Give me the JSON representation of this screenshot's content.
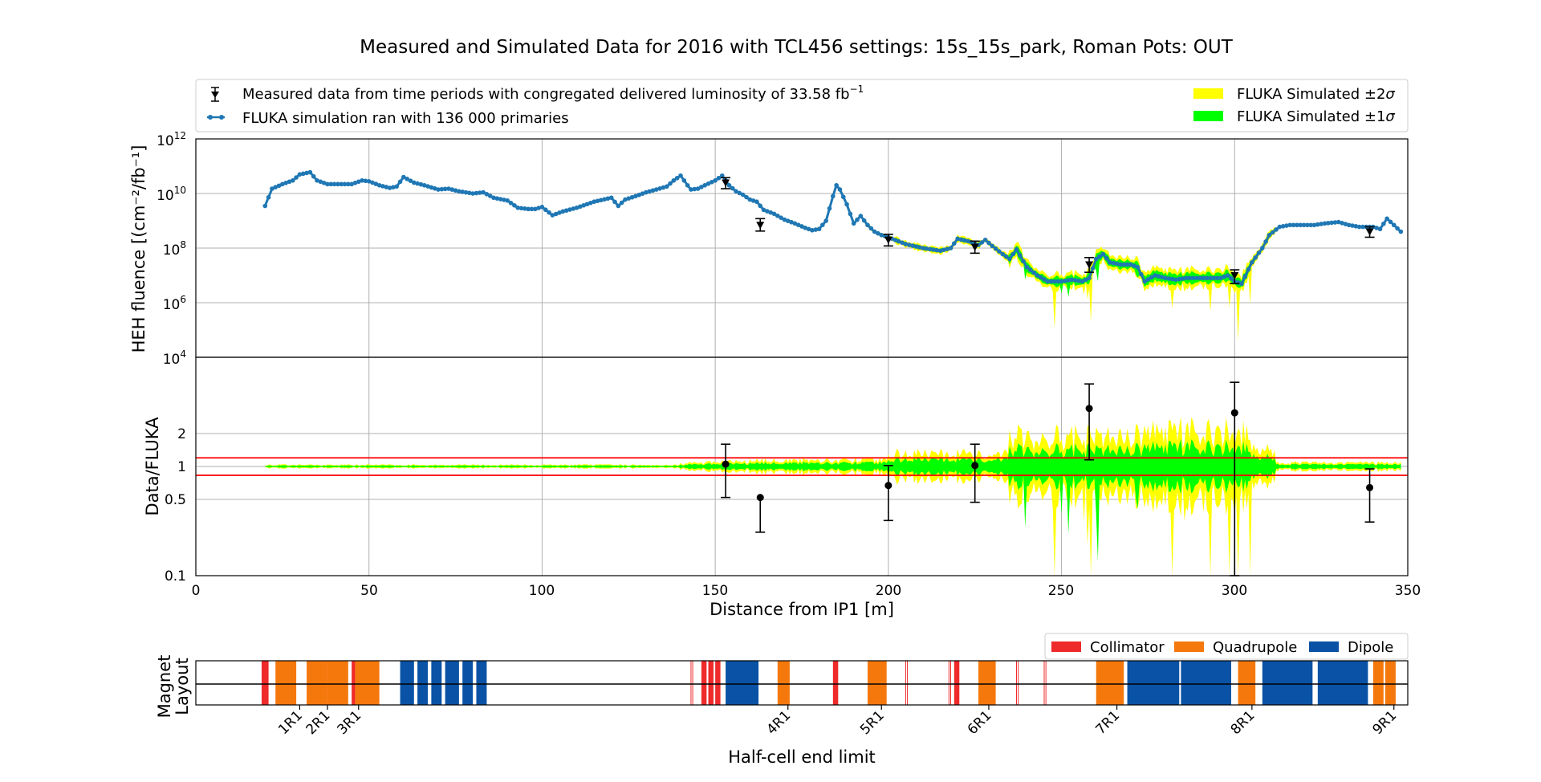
{
  "chart_data": {
    "type": "line",
    "title": "Measured and Simulated Data for 2016 with TCL456 settings: 15s_15s_park, Roman Pots: OUT",
    "colors": {
      "fluka": "#1f77b4",
      "sigma2": "#ffff00",
      "sigma1": "#00ff00",
      "ratio_lines": "#ff0000",
      "collimator": "#ee2a2a",
      "quadrupole": "#f5780d",
      "dipole": "#0a52a5"
    },
    "top_panel": {
      "ylabel": "HEH fluence [(cm⁻²/fb⁻¹]",
      "yscale": "log",
      "ylim": [
        10000,
        1000000000000
      ],
      "ytick_bases": [
        "10",
        "10",
        "10",
        "10",
        "10"
      ],
      "ytick_exps": [
        "12",
        "10",
        "8",
        "6",
        "4"
      ],
      "legend": {
        "measured": "Measured data from time periods with congregated delivered luminosity of 33.58 fb",
        "measured_sup": "−1",
        "fluka": "FLUKA simulation ran with 136 000 primaries",
        "sigma2_prefix": "FLUKA Simulated ±2",
        "sigma1_prefix": "FLUKA Simulated ±1",
        "sigma_symbol": "σ"
      },
      "fluka_series": {
        "x": [
          20,
          22,
          25,
          28,
          30,
          33,
          35,
          38,
          42,
          45,
          48,
          50,
          53,
          56,
          58,
          60,
          63,
          66,
          70,
          73,
          76,
          80,
          83,
          86,
          90,
          93,
          96,
          98,
          100,
          103,
          106,
          110,
          115,
          120,
          122,
          124,
          127,
          130,
          133,
          136,
          138,
          140,
          142,
          143,
          145,
          147,
          150,
          152,
          154,
          156,
          158,
          160,
          162,
          164,
          167,
          170,
          173,
          176,
          178,
          180,
          182,
          184,
          185,
          186,
          188,
          190,
          192,
          194,
          196,
          198,
          200,
          205,
          210,
          215,
          218,
          220,
          223,
          226,
          228,
          230,
          233,
          235,
          237,
          240,
          243,
          246,
          250,
          253,
          256,
          258,
          260,
          262,
          264,
          267,
          270,
          272,
          274,
          277,
          280,
          283,
          286,
          290,
          293,
          296,
          298,
          300,
          302,
          305,
          308,
          310,
          313,
          316,
          320,
          323,
          326,
          330,
          333,
          336,
          340,
          342,
          344,
          346,
          348
        ],
        "y": [
          3500000000.0,
          15000000000.0,
          22000000000.0,
          30000000000.0,
          50000000000.0,
          60000000000.0,
          30000000000.0,
          22000000000.0,
          22000000000.0,
          22000000000.0,
          30000000000.0,
          28000000000.0,
          20000000000.0,
          16000000000.0,
          18000000000.0,
          40000000000.0,
          25000000000.0,
          20000000000.0,
          14000000000.0,
          15000000000.0,
          12000000000.0,
          10000000000.0,
          11000000000.0,
          7000000000.0,
          5500000000.0,
          3000000000.0,
          2700000000.0,
          2700000000.0,
          3200000000.0,
          1600000000.0,
          2200000000.0,
          3000000000.0,
          5000000000.0,
          7000000000.0,
          3500000000.0,
          6000000000.0,
          8000000000.0,
          11000000000.0,
          14000000000.0,
          18000000000.0,
          30000000000.0,
          45000000000.0,
          20000000000.0,
          14000000000.0,
          15000000000.0,
          20000000000.0,
          30000000000.0,
          45000000000.0,
          20000000000.0,
          12000000000.0,
          9000000000.0,
          6000000000.0,
          5000000000.0,
          2500000000.0,
          1800000000.0,
          1100000000.0,
          800000000.0,
          550000000.0,
          450000000.0,
          500000000.0,
          1000000000.0,
          8000000000.0,
          20000000000.0,
          14000000000.0,
          4000000000.0,
          800000000.0,
          1500000000.0,
          700000000.0,
          400000000.0,
          300000000.0,
          250000000.0,
          140000000.0,
          100000000.0,
          80000000.0,
          100000000.0,
          220000000.0,
          180000000.0,
          130000000.0,
          200000000.0,
          120000000.0,
          60000000.0,
          40000000.0,
          90000000.0,
          20000000.0,
          10000000.0,
          6000000.0,
          6000000.0,
          7000000.0,
          6000000.0,
          8000000.0,
          40000000.0,
          60000000.0,
          30000000.0,
          25000000.0,
          25000000.0,
          20000000.0,
          6000000.0,
          10000000.0,
          8000000.0,
          7000000.0,
          8000000.0,
          8000000.0,
          8000000.0,
          8000000.0,
          10000000.0,
          6000000.0,
          5000000.0,
          30000000.0,
          100000000.0,
          300000000.0,
          600000000.0,
          700000000.0,
          700000000.0,
          700000000.0,
          800000000.0,
          900000000.0,
          700000000.0,
          600000000.0,
          600000000.0,
          500000000.0,
          1200000000.0,
          700000000.0,
          400000000.0
        ]
      },
      "measured_points": [
        {
          "x": 153,
          "y": 25000000000.0,
          "lo": 15000000000.0,
          "hi": 38000000000.0
        },
        {
          "x": 163,
          "y": 700000000.0,
          "lo": 420000000.0,
          "hi": 1200000000.0
        },
        {
          "x": 200,
          "y": 200000000.0,
          "lo": 120000000.0,
          "hi": 320000000.0
        },
        {
          "x": 225,
          "y": 110000000.0,
          "lo": 65000000.0,
          "hi": 180000000.0
        },
        {
          "x": 258,
          "y": 25000000.0,
          "lo": 13000000.0,
          "hi": 45000000.0
        },
        {
          "x": 300,
          "y": 10000000.0,
          "lo": 5000000.0,
          "hi": 16000000.0
        },
        {
          "x": 339,
          "y": 400000000.0,
          "lo": 250000000.0,
          "hi": 600000000.0
        }
      ]
    },
    "bottom_panel": {
      "ylabel": "Data/FLUKA",
      "yscale": "log",
      "ylim": [
        0.1,
        10
      ],
      "yticks": [
        "2",
        "1",
        "0.5",
        "0.1"
      ],
      "hlines": [
        1.2,
        0.83
      ],
      "points": [
        {
          "x": 153,
          "y": 1.05,
          "lo": 0.52,
          "hi": 1.6
        },
        {
          "x": 163,
          "y": 0.52,
          "lo": 0.25,
          "hi": null
        },
        {
          "x": 200,
          "y": 0.67,
          "lo": 0.32,
          "hi": 1.02
        },
        {
          "x": 225,
          "y": 1.02,
          "lo": 0.47,
          "hi": 1.6
        },
        {
          "x": 258,
          "y": 3.4,
          "lo": 1.15,
          "hi": 5.7
        },
        {
          "x": 300,
          "y": 3.1,
          "lo": 0.1,
          "hi": 5.9
        },
        {
          "x": 339,
          "y": 0.64,
          "lo": 0.31,
          "hi": 0.95
        }
      ],
      "xlabel": "Distance from IP1 [m]",
      "xlim": [
        0,
        350
      ],
      "xticks": [
        "0",
        "50",
        "100",
        "150",
        "200",
        "250",
        "300",
        "350"
      ]
    },
    "magnet_layout": {
      "ylabel_line1": "Magnet",
      "ylabel_line2": "Layout",
      "xlabel": "Half-cell end limit",
      "legend": [
        "Collimator",
        "Quadrupole",
        "Dipole"
      ],
      "halfcell_labels": [
        "1R1",
        "2R1",
        "3R1",
        "4R1",
        "5R1",
        "6R1",
        "7R1",
        "8R1",
        "9R1"
      ],
      "halfcell_positions": [
        30,
        38,
        47,
        171,
        198,
        229,
        266,
        305,
        346
      ],
      "elements": [
        {
          "type": "collimator",
          "x0": 19,
          "x1": 21
        },
        {
          "type": "quadrupole",
          "x0": 23,
          "x1": 29
        },
        {
          "type": "quadrupole",
          "x0": 32,
          "x1": 38
        },
        {
          "type": "quadrupole",
          "x0": 38,
          "x1": 44
        },
        {
          "type": "collimator",
          "x0": 45,
          "x1": 46
        },
        {
          "type": "quadrupole",
          "x0": 46,
          "x1": 53
        },
        {
          "type": "dipole",
          "x0": 59,
          "x1": 63
        },
        {
          "type": "dipole",
          "x0": 64,
          "x1": 67
        },
        {
          "type": "dipole",
          "x0": 68,
          "x1": 71
        },
        {
          "type": "dipole",
          "x0": 72,
          "x1": 76
        },
        {
          "type": "dipole",
          "x0": 77,
          "x1": 80
        },
        {
          "type": "dipole",
          "x0": 81,
          "x1": 84
        },
        {
          "type": "collimator_outline",
          "x0": 143,
          "x1": 143.5
        },
        {
          "type": "collimator",
          "x0": 146,
          "x1": 147.5
        },
        {
          "type": "collimator",
          "x0": 148,
          "x1": 149.5
        },
        {
          "type": "collimator",
          "x0": 150,
          "x1": 151.5
        },
        {
          "type": "dipole",
          "x0": 153,
          "x1": 162.5
        },
        {
          "type": "quadrupole",
          "x0": 168,
          "x1": 171.5
        },
        {
          "type": "collimator",
          "x0": 184,
          "x1": 185.5
        },
        {
          "type": "quadrupole",
          "x0": 194,
          "x1": 199.5
        },
        {
          "type": "collimator_outline",
          "x0": 205,
          "x1": 205.5
        },
        {
          "type": "collimator_outline",
          "x0": 217.5,
          "x1": 218
        },
        {
          "type": "collimator",
          "x0": 219,
          "x1": 220.5
        },
        {
          "type": "quadrupole",
          "x0": 226,
          "x1": 231
        },
        {
          "type": "collimator_outline",
          "x0": 237,
          "x1": 237.5
        },
        {
          "type": "collimator_outline",
          "x0": 245,
          "x1": 245.5
        },
        {
          "type": "quadrupole",
          "x0": 260,
          "x1": 268
        },
        {
          "type": "dipole",
          "x0": 269,
          "x1": 284
        },
        {
          "type": "dipole",
          "x0": 284.5,
          "x1": 299
        },
        {
          "type": "quadrupole",
          "x0": 301,
          "x1": 306
        },
        {
          "type": "dipole",
          "x0": 308,
          "x1": 322.5
        },
        {
          "type": "dipole",
          "x0": 324,
          "x1": 338.5
        },
        {
          "type": "quadrupole",
          "x0": 340,
          "x1": 343
        },
        {
          "type": "quadrupole",
          "x0": 343.5,
          "x1": 346.5
        }
      ]
    }
  }
}
